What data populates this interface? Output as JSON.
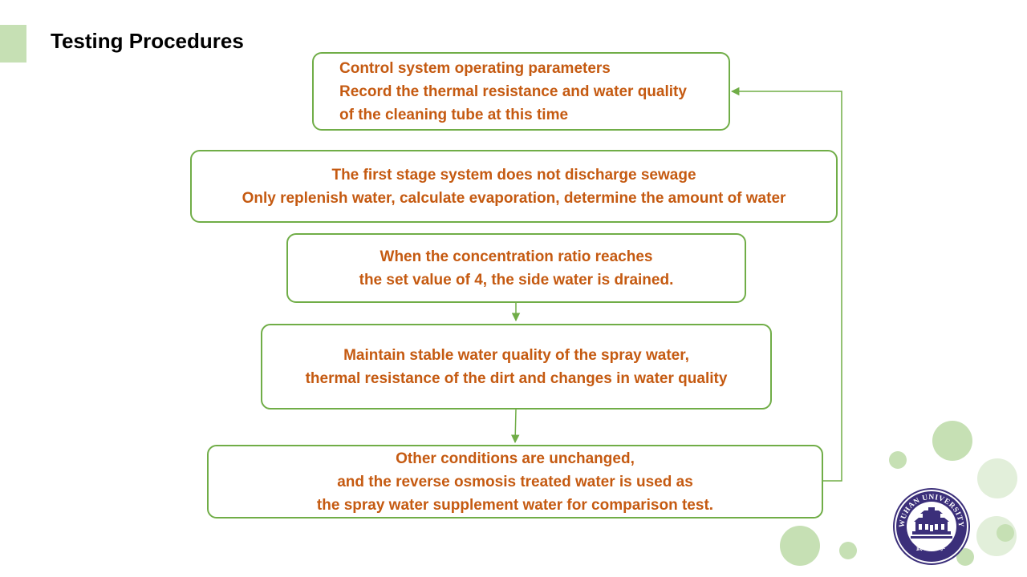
{
  "slide": {
    "title": "Testing Procedures"
  },
  "flow": {
    "steps": [
      {
        "lines": [
          "Control system operating parameters",
          "Record the thermal resistance and water quality",
          "of the cleaning tube at this time"
        ]
      },
      {
        "lines": [
          "The first stage system does not discharge sewage",
          "Only replenish water, calculate evaporation, determine the amount of water"
        ]
      },
      {
        "lines": [
          "When the concentration ratio reaches",
          "the set value of 4, the side water is drained."
        ]
      },
      {
        "lines": [
          "Maintain stable water quality of the spray water,",
          "thermal resistance of the dirt and changes in water quality"
        ]
      },
      {
        "lines": [
          "Other conditions are unchanged,",
          "and the reverse osmosis treated water is used as",
          "the spray water supplement water for comparison test."
        ]
      }
    ]
  },
  "logo": {
    "ring_text": "WUHAN UNIVERSITY",
    "bottom_text": "武汉大学"
  },
  "colors": {
    "border": "#70ad47",
    "text": "#c55a11",
    "accent": "#c6e0b4",
    "logo": "#3b2f7a"
  }
}
